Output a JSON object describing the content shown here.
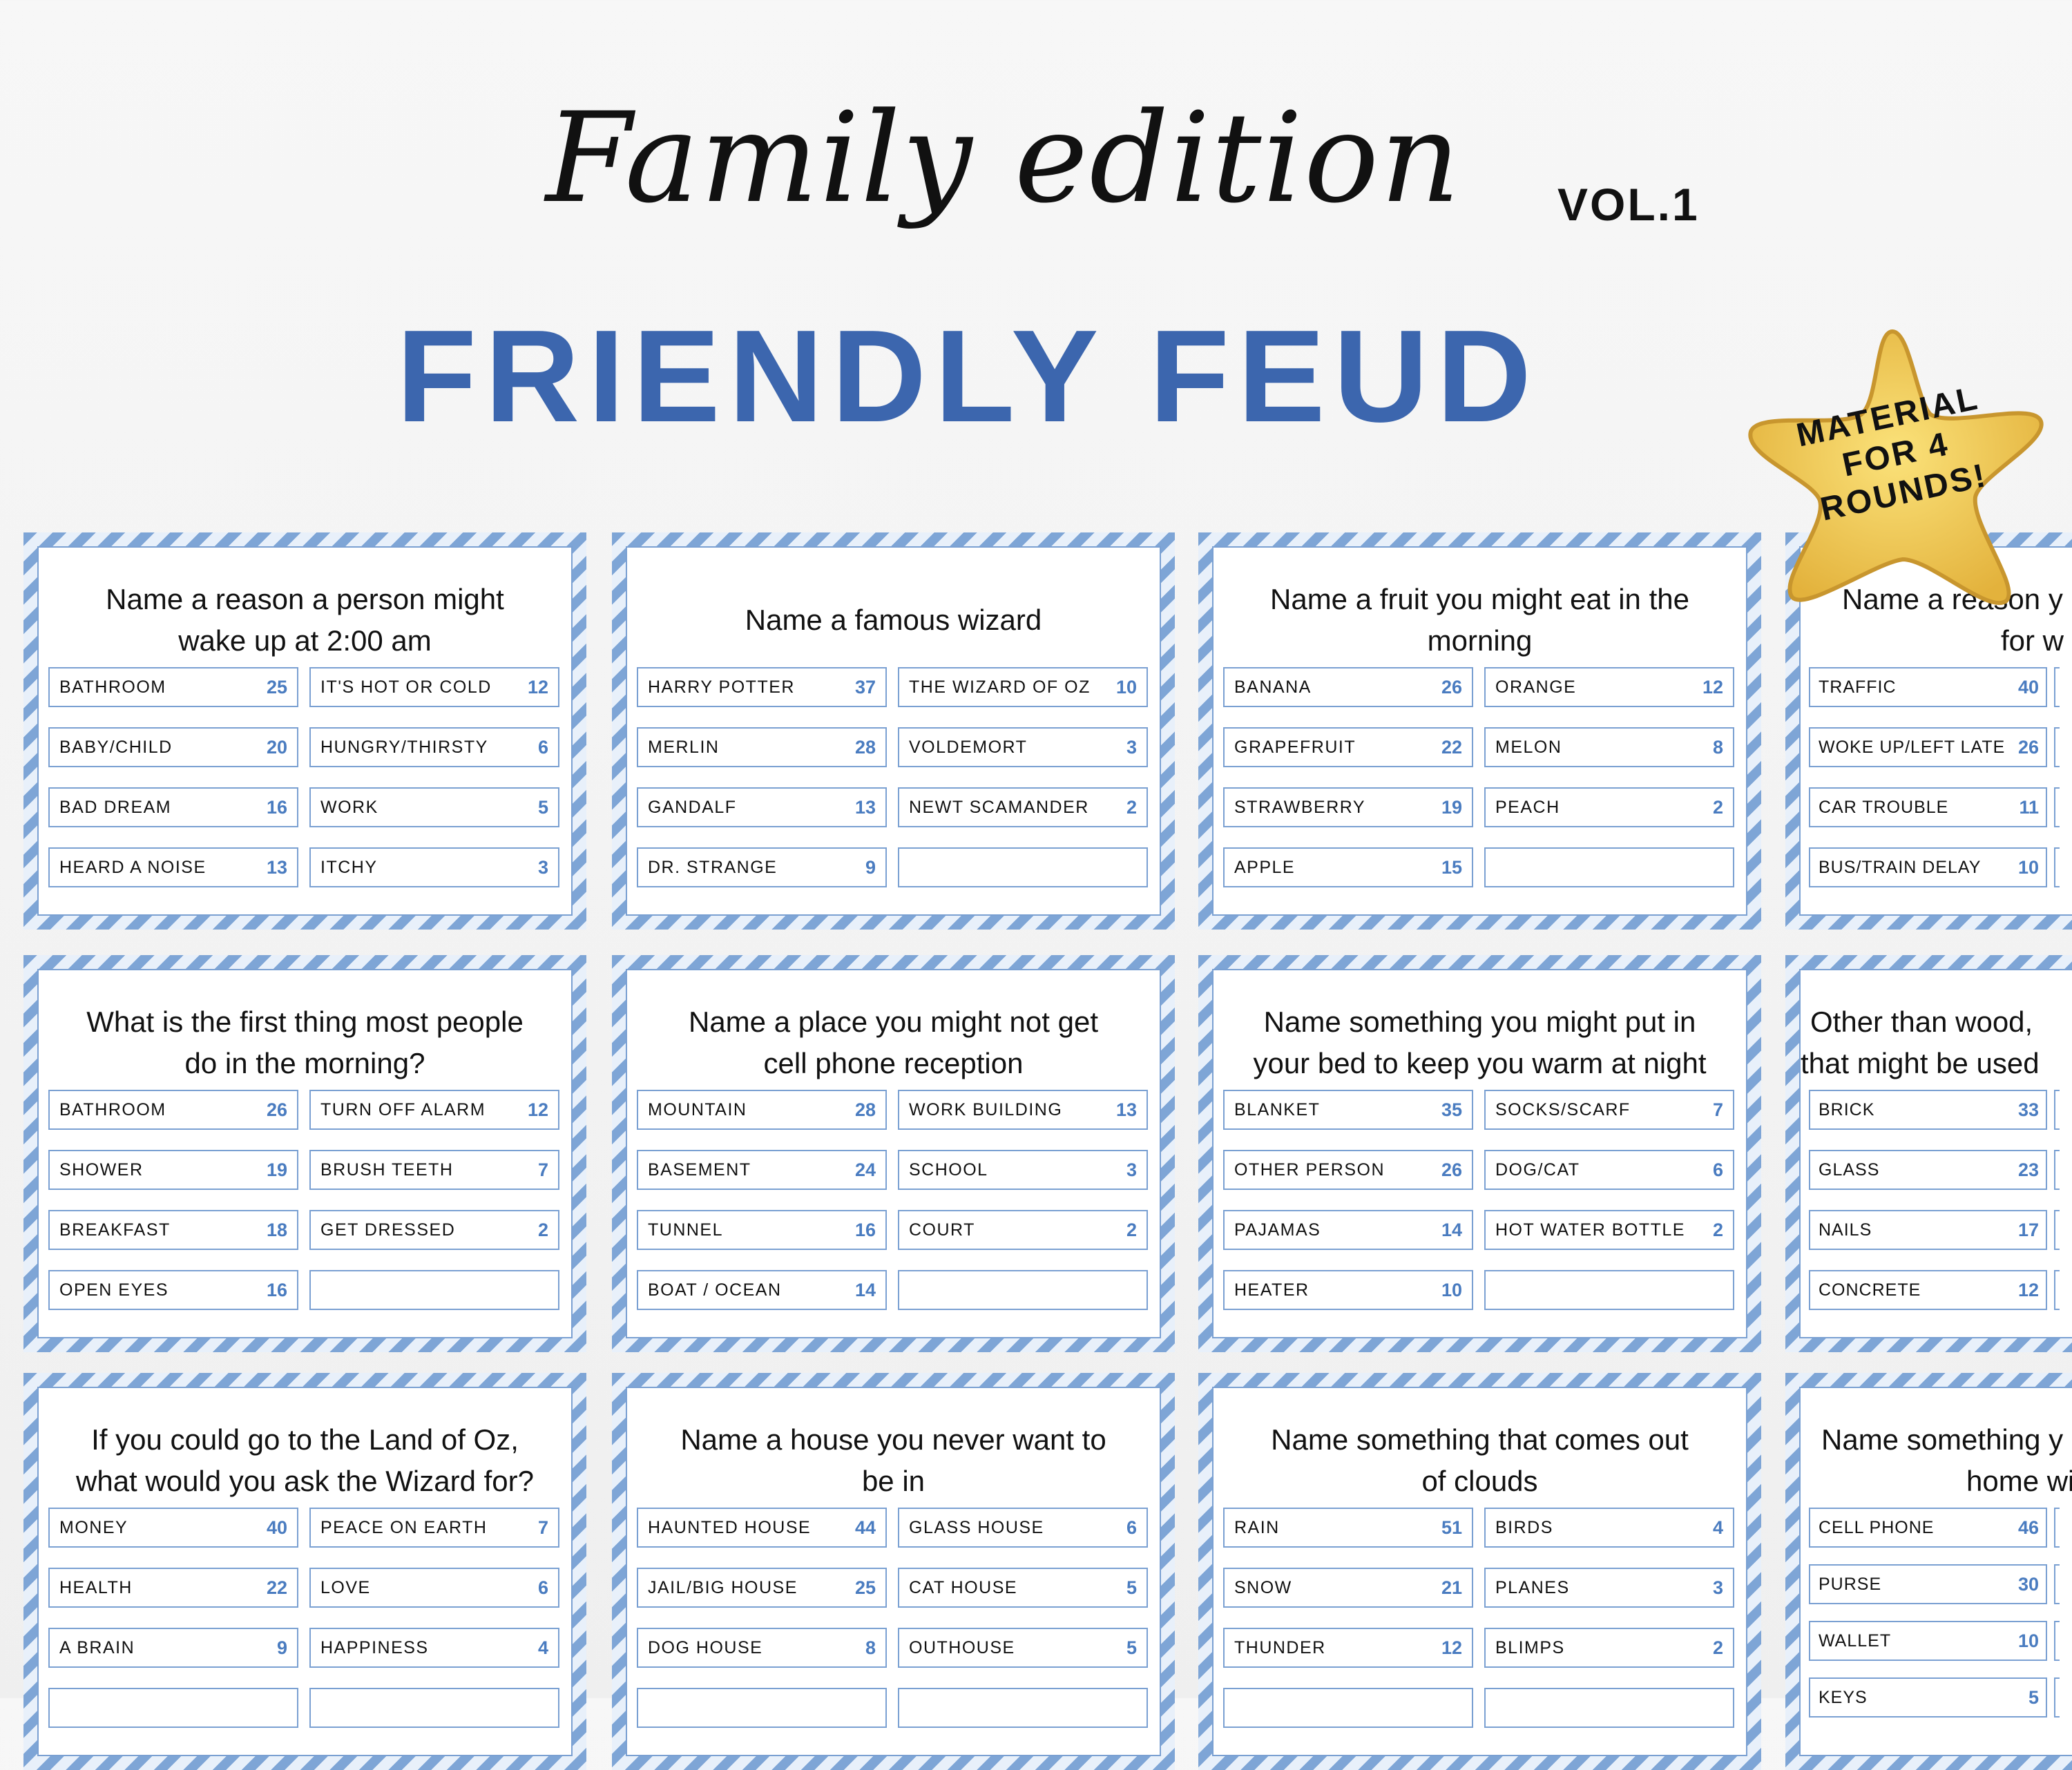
{
  "header": {
    "title_script": "Family edition",
    "volume": "VOL.1",
    "title": "FRIENDLY FEUD"
  },
  "badge": {
    "lines": [
      "MATERIAL",
      "FOR 4",
      "ROUNDS!"
    ]
  },
  "colors": {
    "accent": "#3c66ae",
    "score": "#4a7cc0",
    "border": "#7aa0d2"
  },
  "cards": [
    {
      "question": [
        "Name a reason a person might",
        "wake up at 2:00 am"
      ],
      "left": [
        [
          "BATHROOM",
          "25"
        ],
        [
          "BABY/CHILD",
          "20"
        ],
        [
          "BAD DREAM",
          "16"
        ],
        [
          "HEARD A NOISE",
          "13"
        ]
      ],
      "right": [
        [
          "IT'S HOT OR COLD",
          "12"
        ],
        [
          "HUNGRY/THIRSTY",
          "6"
        ],
        [
          "WORK",
          "5"
        ],
        [
          "ITCHY",
          "3"
        ]
      ]
    },
    {
      "question": [
        "Name a famous wizard"
      ],
      "left": [
        [
          "HARRY POTTER",
          "37"
        ],
        [
          "MERLIN",
          "28"
        ],
        [
          "GANDALF",
          "13"
        ],
        [
          "DR. STRANGE",
          "9"
        ]
      ],
      "right": [
        [
          "THE WIZARD OF OZ",
          "10"
        ],
        [
          "VOLDEMORT",
          "3"
        ],
        [
          "NEWT SCAMANDER",
          "2"
        ],
        [
          "",
          ""
        ]
      ]
    },
    {
      "question": [
        "Name a fruit you might eat in the",
        "morning"
      ],
      "left": [
        [
          "BANANA",
          "26"
        ],
        [
          "GRAPEFRUIT",
          "22"
        ],
        [
          "STRAWBERRY",
          "19"
        ],
        [
          "APPLE",
          "15"
        ]
      ],
      "right": [
        [
          "ORANGE",
          "12"
        ],
        [
          "MELON",
          "8"
        ],
        [
          "PEACH",
          "2"
        ],
        [
          "",
          ""
        ]
      ]
    },
    {
      "question": [
        "Name a reason y",
        "for w"
      ],
      "left": [
        [
          "TRAFFIC",
          "40"
        ],
        [
          "WOKE UP/LEFT LATE",
          "26"
        ],
        [
          "CAR TROUBLE",
          "11"
        ],
        [
          "BUS/TRAIN DELAY",
          "10"
        ]
      ],
      "right": [
        [
          "",
          ""
        ],
        [
          "",
          ""
        ],
        [
          "",
          ""
        ],
        [
          "",
          ""
        ]
      ]
    },
    {
      "question": [
        "What is the first thing most people",
        "do in the morning?"
      ],
      "left": [
        [
          "BATHROOM",
          "26"
        ],
        [
          "SHOWER",
          "19"
        ],
        [
          "BREAKFAST",
          "18"
        ],
        [
          "OPEN EYES",
          "16"
        ]
      ],
      "right": [
        [
          "TURN OFF ALARM",
          "12"
        ],
        [
          "BRUSH TEETH",
          "7"
        ],
        [
          "GET DRESSED",
          "2"
        ],
        [
          "",
          ""
        ]
      ]
    },
    {
      "question": [
        "Name a place you might not get",
        "cell phone reception"
      ],
      "left": [
        [
          "MOUNTAIN",
          "28"
        ],
        [
          "BASEMENT",
          "24"
        ],
        [
          "TUNNEL",
          "16"
        ],
        [
          "BOAT / OCEAN",
          "14"
        ]
      ],
      "right": [
        [
          "WORK BUILDING",
          "13"
        ],
        [
          "SCHOOL",
          "3"
        ],
        [
          "COURT",
          "2"
        ],
        [
          "",
          ""
        ]
      ]
    },
    {
      "question": [
        "Name something you might put in",
        "your bed to keep you warm at night"
      ],
      "left": [
        [
          "BLANKET",
          "35"
        ],
        [
          "OTHER PERSON",
          "26"
        ],
        [
          "PAJAMAS",
          "14"
        ],
        [
          "HEATER",
          "10"
        ]
      ],
      "right": [
        [
          "SOCKS/SCARF",
          "7"
        ],
        [
          "DOG/CAT",
          "6"
        ],
        [
          "HOT WATER BOTTLE",
          "2"
        ],
        [
          "",
          ""
        ]
      ]
    },
    {
      "question": [
        "Other than wood,",
        "that might be used"
      ],
      "left": [
        [
          "BRICK",
          "33"
        ],
        [
          "GLASS",
          "23"
        ],
        [
          "NAILS",
          "17"
        ],
        [
          "CONCRETE",
          "12"
        ]
      ],
      "right": [
        [
          "",
          ""
        ],
        [
          "",
          ""
        ],
        [
          "",
          ""
        ],
        [
          "",
          ""
        ]
      ]
    },
    {
      "question": [
        "If you could go to the Land of Oz,",
        "what would you ask the Wizard for?"
      ],
      "left": [
        [
          "MONEY",
          "40"
        ],
        [
          "HEALTH",
          "22"
        ],
        [
          "A BRAIN",
          "9"
        ],
        [
          "",
          ""
        ]
      ],
      "right": [
        [
          "PEACE ON EARTH",
          "7"
        ],
        [
          "LOVE",
          "6"
        ],
        [
          "HAPPINESS",
          "4"
        ],
        [
          "",
          ""
        ]
      ]
    },
    {
      "question": [
        "Name a house you never want to",
        "be in"
      ],
      "left": [
        [
          "HAUNTED HOUSE",
          "44"
        ],
        [
          "JAIL/BIG HOUSE",
          "25"
        ],
        [
          "DOG HOUSE",
          "8"
        ],
        [
          "",
          ""
        ]
      ],
      "right": [
        [
          "GLASS HOUSE",
          "6"
        ],
        [
          "CAT HOUSE",
          "5"
        ],
        [
          "OUTHOUSE",
          "5"
        ],
        [
          "",
          ""
        ]
      ]
    },
    {
      "question": [
        "Name something that comes out",
        "of clouds"
      ],
      "left": [
        [
          "RAIN",
          "51"
        ],
        [
          "SNOW",
          "21"
        ],
        [
          "THUNDER",
          "12"
        ],
        [
          "",
          ""
        ]
      ],
      "right": [
        [
          "BIRDS",
          "4"
        ],
        [
          "PLANES",
          "3"
        ],
        [
          "BLIMPS",
          "2"
        ],
        [
          "",
          ""
        ]
      ]
    },
    {
      "question": [
        "Name something y",
        "home wi"
      ],
      "left": [
        [
          "CELL PHONE",
          "46"
        ],
        [
          "PURSE",
          "30"
        ],
        [
          "WALLET",
          "10"
        ],
        [
          "KEYS",
          "5"
        ]
      ],
      "right": [
        [
          "",
          ""
        ],
        [
          "",
          ""
        ],
        [
          "",
          ""
        ],
        [
          "",
          ""
        ]
      ]
    }
  ]
}
